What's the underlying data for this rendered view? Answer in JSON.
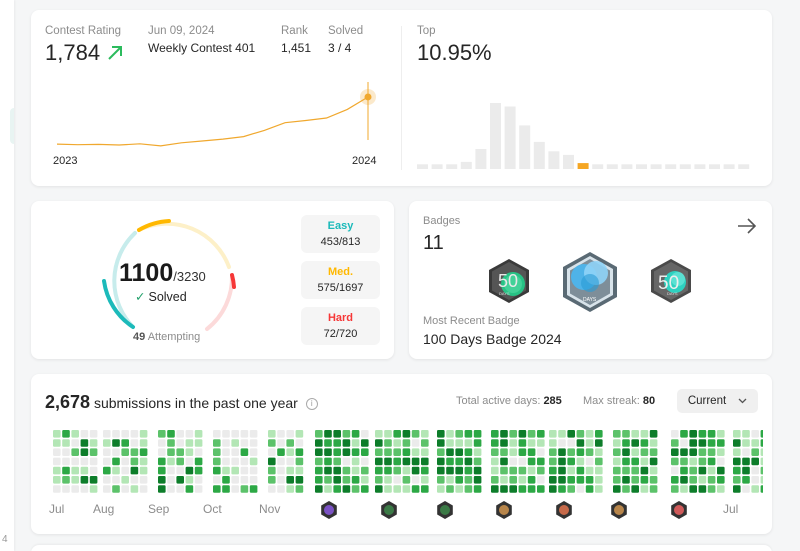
{
  "contest": {
    "rating_label": "Contest Rating",
    "rating_value": "1,784",
    "date": "Jun 09, 2024",
    "contest_name": "Weekly Contest 401",
    "rank_label": "Rank",
    "rank_value": "1,451",
    "solved_label": "Solved",
    "solved_value": "3 / 4",
    "top_label": "Top",
    "top_value": "10.95%",
    "year_start": "2023",
    "year_end": "2024"
  },
  "chart_data": [
    {
      "type": "line",
      "x": [
        0,
        1,
        2,
        3,
        4,
        5,
        6,
        7,
        8,
        9,
        10,
        11,
        12,
        13,
        14,
        15
      ],
      "values": [
        1632,
        1630,
        1631,
        1629,
        1633,
        1626,
        1636,
        1642,
        1648,
        1656,
        1676,
        1701,
        1708,
        1716,
        1744,
        1784
      ],
      "xticklabels": [
        "2023",
        "2024"
      ],
      "accent": "#f0a82e"
    },
    {
      "type": "bar",
      "values": [
        4,
        4,
        4,
        6,
        17,
        56,
        53,
        37,
        23,
        15,
        12,
        5,
        4,
        4,
        4,
        4,
        4,
        4,
        4,
        4,
        4,
        4,
        4
      ],
      "highlight_index": 11,
      "bar_color": "#ebebeb",
      "highlight_color": "#f5a623"
    }
  ],
  "problems": {
    "solved": "1100",
    "total": "/3230",
    "solved_label": "Solved",
    "attempting_count": "49",
    "attempting_label": "Attempting",
    "easy": {
      "label": "Easy",
      "value": "453/813",
      "color": "#1cbaba"
    },
    "medium": {
      "label": "Med.",
      "value": "575/1697",
      "color": "#ffb800"
    },
    "hard": {
      "label": "Hard",
      "value": "72/720",
      "color": "#f63737"
    }
  },
  "badges": {
    "title": "Badges",
    "count": "11",
    "recent_label": "Most Recent Badge",
    "recent_name": "100 Days Badge 2024",
    "items": [
      {
        "icon": "50-days-badge-icon",
        "text": "50",
        "sub": "DAYS"
      },
      {
        "icon": "100-days-badge-icon",
        "text": "",
        "sub": "DAYS"
      },
      {
        "icon": "50-days-badge-icon",
        "text": "50",
        "sub": "DAYS"
      }
    ]
  },
  "submissions": {
    "count": "2,678",
    "label": "submissions in the past one year",
    "active_days_label": "Total active days:",
    "active_days": "285",
    "max_streak_label": "Max streak:",
    "max_streak": "80",
    "range_select": "Current",
    "months": [
      "Jul",
      "Aug",
      "Sep",
      "Oct",
      "Nov",
      "Jul"
    ],
    "palette": [
      "#ebebeb",
      "#b3e6b5",
      "#5cc26a",
      "#2ca845",
      "#0d7d2a"
    ]
  }
}
